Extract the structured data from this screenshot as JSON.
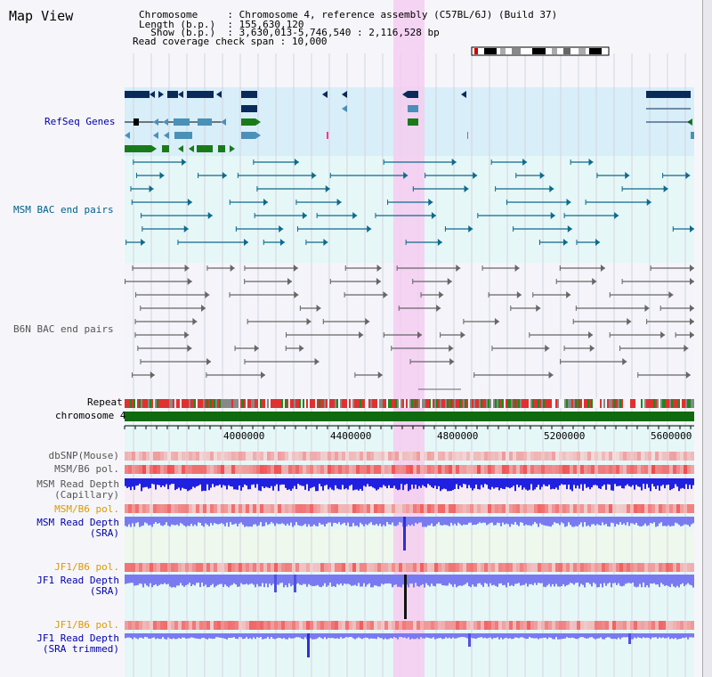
{
  "title": "Map View",
  "header": {
    "lines": [
      {
        "key": "Chromosome     ",
        "value": ": Chromosome 4, reference assembly (C57BL/6J) (Build 37)"
      },
      {
        "key": "Length (b.p.)  ",
        "value": ": 155,630,120"
      },
      {
        "key": "  Show (b.p.)  ",
        "value": ": 3,630,013-5,746,540 : 2,116,528 bp"
      },
      {
        "key": "Read coverage check span ",
        "value": ": 10,000"
      }
    ]
  },
  "tracks": {
    "refseq": "RefSeq Genes",
    "msm_bac": "MSM BAC end pairs",
    "b6n_bac": "B6N BAC end pairs",
    "repeat": "Repeat",
    "chromosome": "chromosome 4",
    "dbsnp": "dbSNP(Mouse)",
    "msm_b6_pol_1": "MSM/B6 pol.",
    "msm_read_depth_cap_1": "MSM Read Depth",
    "msm_read_depth_cap_2": "(Capillary)",
    "msm_b6_pol_2": "MSM/B6 pol.",
    "msm_read_depth_sra_1": "MSM Read Depth",
    "msm_read_depth_sra_2": "(SRA)",
    "jf1_b6_pol_1": "JF1/B6 pol.",
    "jf1_read_depth_sra_1": "JF1 Read Depth",
    "jf1_read_depth_sra_2": "(SRA)",
    "jf1_b6_pol_2": "JF1/B6 pol.",
    "jf1_read_depth_trim_1": "JF1 Read Depth",
    "jf1_read_depth_trim_2": "(SRA trimmed)"
  },
  "axis": {
    "ticks": [
      "4000000",
      "4400000",
      "4800000",
      "5200000",
      "5600000"
    ]
  },
  "colors": {
    "refseq_navy": "#0a2a5a",
    "refseq_teal": "#4a90b8",
    "refseq_green": "#1a7a1a",
    "highlight_pink": "#f5ccf0",
    "chromosome_green": "#106a10",
    "depth_blue": "#2020e0",
    "depth_light": "#7a7af0"
  }
}
